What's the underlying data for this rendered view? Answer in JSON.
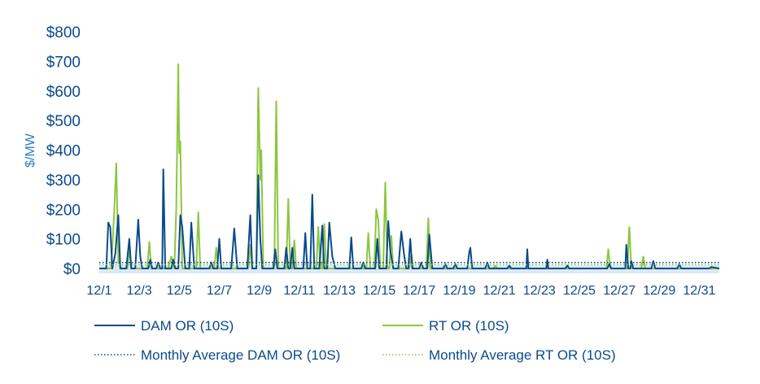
{
  "chart_data": {
    "type": "line",
    "ylabel": "$/MW",
    "xlabel": "",
    "ylim": [
      0,
      800
    ],
    "y_ticks": [
      0,
      100,
      200,
      300,
      400,
      500,
      600,
      700,
      800
    ],
    "y_tick_labels": [
      "$0",
      "$100",
      "$200",
      "$300",
      "$400",
      "$500",
      "$600",
      "$700",
      "$800"
    ],
    "xlim": [
      1,
      32
    ],
    "x_ticks": [
      1,
      3,
      5,
      7,
      9,
      11,
      13,
      15,
      17,
      19,
      21,
      23,
      25,
      27,
      29,
      31
    ],
    "x_tick_labels": [
      "12/1",
      "12/3",
      "12/5",
      "12/7",
      "12/9",
      "12/11",
      "12/13",
      "12/15",
      "12/17",
      "12/19",
      "12/21",
      "12/23",
      "12/25",
      "12/27",
      "12/29",
      "12/31"
    ],
    "grid": false,
    "legend_position": "bottom",
    "series": [
      {
        "name": "DAM OR (10S)",
        "color": "#0b4a8b",
        "style": "solid",
        "points": [
          [
            1.0,
            0
          ],
          [
            1.35,
            0
          ],
          [
            1.45,
            155
          ],
          [
            1.55,
            140
          ],
          [
            1.65,
            0
          ],
          [
            1.8,
            50
          ],
          [
            1.95,
            180
          ],
          [
            2.05,
            0
          ],
          [
            2.35,
            0
          ],
          [
            2.5,
            100
          ],
          [
            2.6,
            0
          ],
          [
            2.8,
            0
          ],
          [
            2.95,
            165
          ],
          [
            3.05,
            40
          ],
          [
            3.15,
            0
          ],
          [
            3.45,
            0
          ],
          [
            3.55,
            30
          ],
          [
            3.65,
            0
          ],
          [
            3.85,
            0
          ],
          [
            3.95,
            20
          ],
          [
            4.05,
            0
          ],
          [
            4.15,
            0
          ],
          [
            4.2,
            335
          ],
          [
            4.3,
            0
          ],
          [
            4.6,
            0
          ],
          [
            4.7,
            30
          ],
          [
            4.8,
            0
          ],
          [
            4.95,
            0
          ],
          [
            5.05,
            180
          ],
          [
            5.15,
            140
          ],
          [
            5.3,
            0
          ],
          [
            5.5,
            0
          ],
          [
            5.6,
            155
          ],
          [
            5.75,
            0
          ],
          [
            6.5,
            0
          ],
          [
            6.6,
            20
          ],
          [
            6.7,
            0
          ],
          [
            6.9,
            0
          ],
          [
            7.0,
            100
          ],
          [
            7.1,
            0
          ],
          [
            7.6,
            0
          ],
          [
            7.75,
            135
          ],
          [
            7.9,
            0
          ],
          [
            8.4,
            0
          ],
          [
            8.55,
            180
          ],
          [
            8.65,
            0
          ],
          [
            8.85,
            0
          ],
          [
            8.95,
            315
          ],
          [
            9.05,
            100
          ],
          [
            9.15,
            0
          ],
          [
            9.7,
            0
          ],
          [
            9.8,
            65
          ],
          [
            9.9,
            0
          ],
          [
            10.25,
            0
          ],
          [
            10.35,
            70
          ],
          [
            10.45,
            0
          ],
          [
            10.55,
            0
          ],
          [
            10.65,
            70
          ],
          [
            10.75,
            0
          ],
          [
            11.2,
            0
          ],
          [
            11.3,
            120
          ],
          [
            11.4,
            0
          ],
          [
            11.55,
            0
          ],
          [
            11.65,
            250
          ],
          [
            11.75,
            0
          ],
          [
            12.0,
            0
          ],
          [
            12.15,
            145
          ],
          [
            12.25,
            0
          ],
          [
            12.4,
            0
          ],
          [
            12.5,
            155
          ],
          [
            12.65,
            40
          ],
          [
            12.8,
            0
          ],
          [
            13.5,
            0
          ],
          [
            13.6,
            105
          ],
          [
            13.7,
            0
          ],
          [
            14.1,
            0
          ],
          [
            14.2,
            20
          ],
          [
            14.3,
            0
          ],
          [
            14.8,
            0
          ],
          [
            14.9,
            100
          ],
          [
            15.0,
            0
          ],
          [
            15.35,
            0
          ],
          [
            15.45,
            160
          ],
          [
            15.55,
            60
          ],
          [
            15.7,
            0
          ],
          [
            15.95,
            0
          ],
          [
            16.1,
            125
          ],
          [
            16.25,
            40
          ],
          [
            16.35,
            0
          ],
          [
            16.45,
            0
          ],
          [
            16.55,
            100
          ],
          [
            16.65,
            0
          ],
          [
            17.0,
            0
          ],
          [
            17.1,
            20
          ],
          [
            17.2,
            0
          ],
          [
            17.4,
            0
          ],
          [
            17.5,
            115
          ],
          [
            17.65,
            0
          ],
          [
            18.2,
            0
          ],
          [
            18.3,
            15
          ],
          [
            18.4,
            0
          ],
          [
            18.7,
            0
          ],
          [
            18.8,
            15
          ],
          [
            18.9,
            0
          ],
          [
            19.4,
            0
          ],
          [
            19.5,
            55
          ],
          [
            19.55,
            70
          ],
          [
            19.65,
            0
          ],
          [
            20.3,
            0
          ],
          [
            20.4,
            20
          ],
          [
            20.5,
            0
          ],
          [
            21.4,
            0
          ],
          [
            21.5,
            10
          ],
          [
            21.6,
            0
          ],
          [
            22.35,
            0
          ],
          [
            22.4,
            65
          ],
          [
            22.45,
            0
          ],
          [
            23.35,
            0
          ],
          [
            23.4,
            30
          ],
          [
            23.45,
            0
          ],
          [
            24.3,
            0
          ],
          [
            24.4,
            10
          ],
          [
            24.5,
            0
          ],
          [
            26.4,
            0
          ],
          [
            26.5,
            15
          ],
          [
            26.6,
            0
          ],
          [
            27.3,
            0
          ],
          [
            27.35,
            80
          ],
          [
            27.45,
            0
          ],
          [
            27.55,
            0
          ],
          [
            27.6,
            25
          ],
          [
            27.7,
            0
          ],
          [
            28.6,
            0
          ],
          [
            28.7,
            25
          ],
          [
            28.8,
            0
          ],
          [
            29.9,
            0
          ],
          [
            30.0,
            15
          ],
          [
            30.1,
            0
          ],
          [
            31.5,
            0
          ],
          [
            31.6,
            5
          ],
          [
            32.0,
            0
          ]
        ]
      },
      {
        "name": "RT OR (10S)",
        "color": "#8cc63f",
        "style": "solid",
        "points": [
          [
            1.0,
            0
          ],
          [
            1.6,
            0
          ],
          [
            1.75,
            195
          ],
          [
            1.85,
            355
          ],
          [
            1.95,
            20
          ],
          [
            2.1,
            0
          ],
          [
            2.4,
            0
          ],
          [
            2.5,
            70
          ],
          [
            2.6,
            0
          ],
          [
            3.4,
            0
          ],
          [
            3.5,
            90
          ],
          [
            3.6,
            0
          ],
          [
            4.45,
            0
          ],
          [
            4.6,
            40
          ],
          [
            4.75,
            0
          ],
          [
            4.85,
            200
          ],
          [
            4.95,
            690
          ],
          [
            5.0,
            390
          ],
          [
            5.05,
            430
          ],
          [
            5.15,
            0
          ],
          [
            5.85,
            0
          ],
          [
            5.95,
            190
          ],
          [
            6.05,
            0
          ],
          [
            6.75,
            0
          ],
          [
            6.85,
            70
          ],
          [
            6.95,
            0
          ],
          [
            8.45,
            0
          ],
          [
            8.55,
            80
          ],
          [
            8.65,
            0
          ],
          [
            8.85,
            0
          ],
          [
            8.95,
            610
          ],
          [
            9.05,
            300
          ],
          [
            9.1,
            400
          ],
          [
            9.2,
            0
          ],
          [
            9.75,
            0
          ],
          [
            9.85,
            565
          ],
          [
            9.95,
            0
          ],
          [
            10.35,
            0
          ],
          [
            10.45,
            235
          ],
          [
            10.55,
            0
          ],
          [
            10.65,
            0
          ],
          [
            10.75,
            95
          ],
          [
            10.85,
            0
          ],
          [
            11.85,
            0
          ],
          [
            11.95,
            140
          ],
          [
            12.05,
            0
          ],
          [
            12.15,
            0
          ],
          [
            12.25,
            150
          ],
          [
            12.35,
            0
          ],
          [
            14.35,
            0
          ],
          [
            14.45,
            120
          ],
          [
            14.55,
            0
          ],
          [
            14.75,
            0
          ],
          [
            14.85,
            200
          ],
          [
            14.95,
            165
          ],
          [
            15.05,
            0
          ],
          [
            15.2,
            0
          ],
          [
            15.3,
            290
          ],
          [
            15.4,
            0
          ],
          [
            15.5,
            0
          ],
          [
            15.6,
            110
          ],
          [
            15.7,
            0
          ],
          [
            16.5,
            0
          ],
          [
            16.6,
            50
          ],
          [
            16.7,
            0
          ],
          [
            17.35,
            0
          ],
          [
            17.45,
            170
          ],
          [
            17.55,
            0
          ],
          [
            20.7,
            0
          ],
          [
            20.8,
            10
          ],
          [
            20.9,
            0
          ],
          [
            26.35,
            0
          ],
          [
            26.45,
            65
          ],
          [
            26.55,
            0
          ],
          [
            27.4,
            0
          ],
          [
            27.5,
            140
          ],
          [
            27.6,
            0
          ],
          [
            28.1,
            0
          ],
          [
            28.2,
            40
          ],
          [
            28.3,
            0
          ],
          [
            32.0,
            0
          ]
        ]
      },
      {
        "name": "Monthly Average DAM OR (10S)",
        "color": "#0b4a8b",
        "style": "dotted",
        "points": [
          [
            1,
            20
          ],
          [
            32,
            20
          ]
        ]
      },
      {
        "name": "Monthly Average RT OR (10S)",
        "color": "#8cc63f",
        "style": "dotted",
        "points": [
          [
            1,
            13
          ],
          [
            32,
            13
          ]
        ]
      }
    ]
  }
}
